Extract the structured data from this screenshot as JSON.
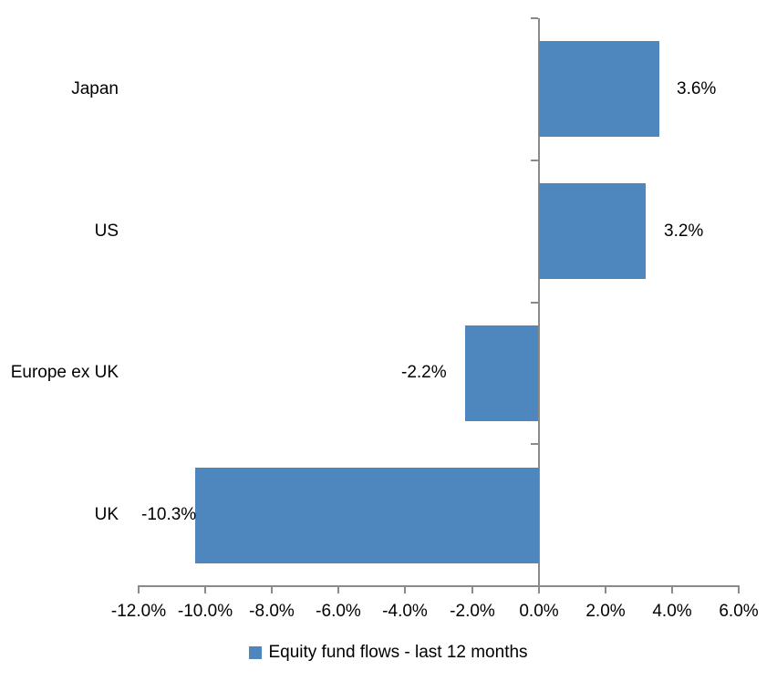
{
  "chart_data": {
    "type": "bar",
    "orientation": "horizontal",
    "title": "",
    "categories": [
      "Japan",
      "US",
      "Europe ex UK",
      "UK"
    ],
    "series": [
      {
        "name": "Equity fund flows - last 12 months",
        "values": [
          3.6,
          3.2,
          -2.2,
          -10.3
        ],
        "data_labels": [
          "3.6%",
          "3.2%",
          "-2.2%",
          "-10.3%"
        ]
      }
    ],
    "xlim": [
      -12,
      6
    ],
    "x_ticks": [
      -12,
      -10,
      -8,
      -6,
      -4,
      -2,
      0,
      2,
      4,
      6
    ],
    "x_tick_labels": [
      "-12.0%",
      "-10.0%",
      "-8.0%",
      "-6.0%",
      "-4.0%",
      "-2.0%",
      "0.0%",
      "2.0%",
      "4.0%",
      "6.0%"
    ],
    "grid": false,
    "legend_position": "bottom",
    "colors": {
      "bar": "#4E87BE",
      "axis": "#8A8A8A",
      "text": "#000000",
      "background": "#FFFFFF"
    }
  }
}
